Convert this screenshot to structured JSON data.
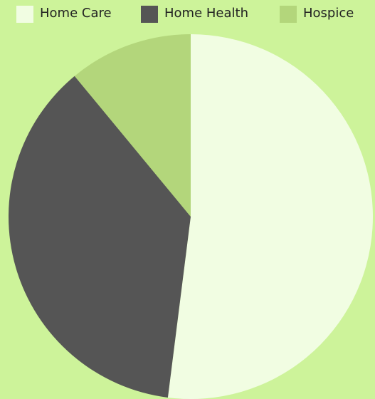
{
  "chart_data": {
    "type": "pie",
    "categories": [
      "Home Care",
      "Home Health",
      "Hospice"
    ],
    "values": [
      52,
      37,
      11
    ],
    "colors": [
      "#f1fde2",
      "#555555",
      "#b3d67b"
    ],
    "legend": "top"
  }
}
